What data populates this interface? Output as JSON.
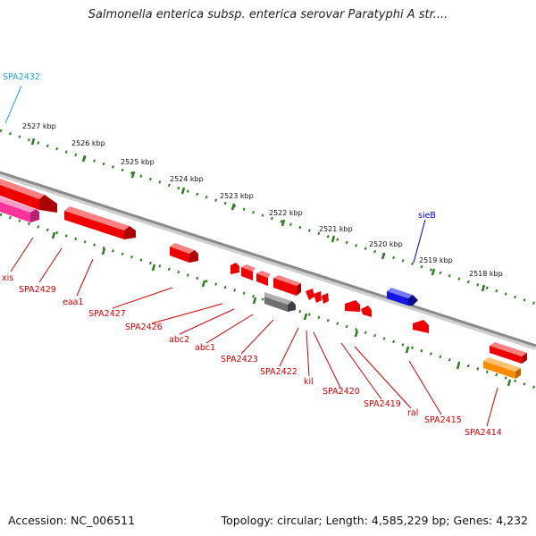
{
  "title": "Salmonella enterica subsp. enterica serovar Paratyphi A str....",
  "footer": {
    "accession": "Accession: NC_006511",
    "summary": "Topology: circular; Length: 4,585,229 bp; Genes: 4,232"
  },
  "colors": {
    "backbone": "#8a8a8a",
    "tick": "#2e7d1e",
    "gene_red": "#ee0000",
    "gene_pink": "#ff3399",
    "gene_blue": "#1515e6",
    "gene_gray": "#707070",
    "gene_orange": "#ff8c00",
    "label_red": "#cc0000",
    "label_blue": "#0000cc",
    "label_cyan": "#1fa5d6"
  },
  "scale": {
    "unit": "kbp",
    "ticks": [
      {
        "label": "2527 kbp",
        "value": 2527
      },
      {
        "label": "2526 kbp",
        "value": 2526
      },
      {
        "label": "2525 kbp",
        "value": 2525
      },
      {
        "label": "2524 kbp",
        "value": 2524
      },
      {
        "label": "2523 kbp",
        "value": 2523
      },
      {
        "label": "2522 kbp",
        "value": 2522
      },
      {
        "label": "2521 kbp",
        "value": 2521
      },
      {
        "label": "2520 kbp",
        "value": 2520
      },
      {
        "label": "2519 kbp",
        "value": 2519
      },
      {
        "label": "2518 kbp",
        "value": 2518
      }
    ]
  },
  "genes": [
    {
      "label": "SPA2432",
      "color": "cyan"
    },
    {
      "label": "sieB",
      "color": "blue"
    },
    {
      "label": "xis",
      "color": "pink"
    },
    {
      "label": "SPA2429",
      "color": "red"
    },
    {
      "label": "eaa1",
      "color": "red"
    },
    {
      "label": "SPA2427",
      "color": "red"
    },
    {
      "label": "SPA2426",
      "color": "red"
    },
    {
      "label": "abc2",
      "color": "red"
    },
    {
      "label": "abc1",
      "color": "red"
    },
    {
      "label": "SPA2423",
      "color": "red"
    },
    {
      "label": "SPA2422",
      "color": "red"
    },
    {
      "label": "kil",
      "color": "red"
    },
    {
      "label": "SPA2420",
      "color": "red"
    },
    {
      "label": "SPA2419",
      "color": "red"
    },
    {
      "label": "ral",
      "color": "red"
    },
    {
      "label": "SPA2415",
      "color": "red"
    },
    {
      "label": "SPA2414",
      "color": "red"
    }
  ]
}
